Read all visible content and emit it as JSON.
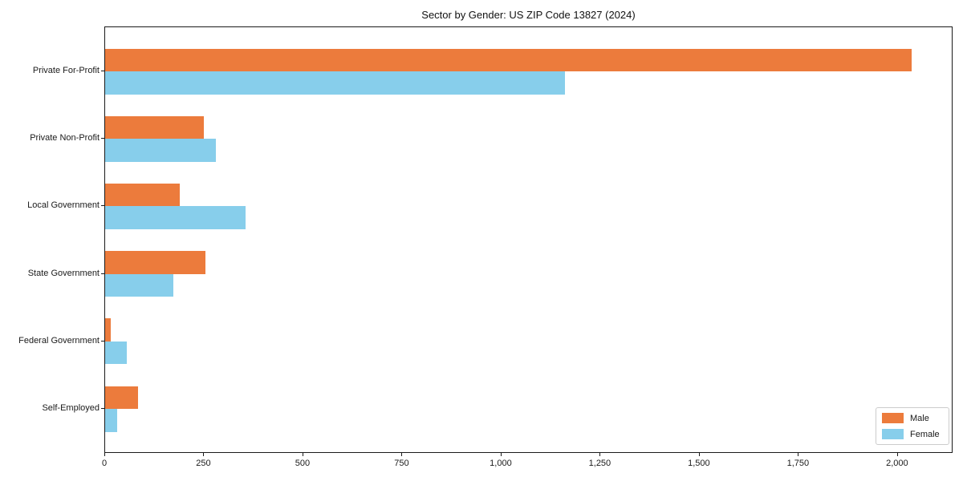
{
  "chart_data": {
    "type": "bar",
    "orientation": "horizontal",
    "title": "Sector by Gender: US ZIP Code 13827 (2024)",
    "categories": [
      "Private For-Profit",
      "Private Non-Profit",
      "Local Government",
      "State Government",
      "Federal Government",
      "Self-Employed"
    ],
    "series": [
      {
        "name": "Male",
        "color": "#ec7b3c",
        "values": [
          2035,
          250,
          188,
          253,
          15,
          82
        ]
      },
      {
        "name": "Female",
        "color": "#87ceeb",
        "values": [
          1160,
          280,
          355,
          172,
          55,
          30
        ]
      }
    ],
    "xlabel": "",
    "ylabel": "",
    "xlim": [
      0,
      2140
    ],
    "xticks": [
      0,
      250,
      500,
      750,
      1000,
      1250,
      1500,
      1750,
      2000
    ],
    "xtick_labels": [
      "0",
      "250",
      "500",
      "750",
      "1,000",
      "1,250",
      "1,500",
      "1,750",
      "2,000"
    ],
    "grid": false,
    "legend_position": "lower right",
    "axis_color": "#1a1a1a",
    "legend_border_color": "#cccccc",
    "background_color": "#ffffff"
  }
}
